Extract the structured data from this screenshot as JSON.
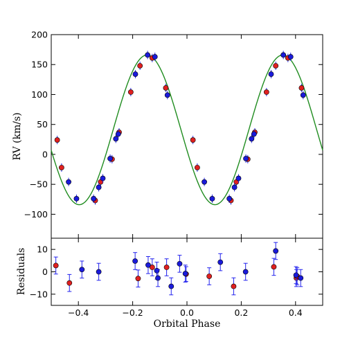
{
  "chart_data": [
    {
      "type": "scatter",
      "panel": "top",
      "xlabel": "",
      "ylabel": "RV (km/s)",
      "xlim": [
        -0.5,
        0.5
      ],
      "ylim": [
        -140,
        200
      ],
      "x_ticks": [
        -0.4,
        -0.2,
        0.0,
        0.2,
        0.4
      ],
      "x_tick_labels": [
        "",
        "",
        "",
        "",
        ""
      ],
      "y_ticks": [
        -100,
        -50,
        0,
        50,
        100,
        150,
        200
      ],
      "y_tick_labels": [
        "−100",
        "−50",
        "0",
        "50",
        "100",
        "150",
        "200"
      ],
      "grid": false,
      "colors": {
        "model": "#1f8c1f",
        "series_red": "#e02020",
        "series_blue": "#1a1adb",
        "errorbar": "#2222ee"
      },
      "model_curve": {
        "gamma": 41,
        "amplitude": 125,
        "period_in_phase": 0.5,
        "peak_phase": 0.353
      },
      "series": [
        {
          "color": "red",
          "points": [
            {
              "x": -0.478,
              "y": 24
            },
            {
              "x": -0.462,
              "y": -22
            },
            {
              "x": -0.338,
              "y": -77
            },
            {
              "x": -0.318,
              "y": -46
            },
            {
              "x": -0.276,
              "y": -8
            },
            {
              "x": -0.25,
              "y": 37
            },
            {
              "x": -0.207,
              "y": 104
            },
            {
              "x": -0.173,
              "y": 148
            },
            {
              "x": -0.128,
              "y": 161
            },
            {
              "x": -0.078,
              "y": 111
            },
            {
              "x": 0.022,
              "y": 24
            },
            {
              "x": 0.038,
              "y": -22
            },
            {
              "x": 0.162,
              "y": -77
            },
            {
              "x": 0.182,
              "y": -46
            },
            {
              "x": 0.224,
              "y": -8
            },
            {
              "x": 0.25,
              "y": 37
            },
            {
              "x": 0.293,
              "y": 104
            },
            {
              "x": 0.327,
              "y": 148
            },
            {
              "x": 0.372,
              "y": 161
            },
            {
              "x": 0.422,
              "y": 111
            }
          ]
        },
        {
          "color": "blue",
          "points": [
            {
              "x": -0.436,
              "y": -46
            },
            {
              "x": -0.407,
              "y": -74
            },
            {
              "x": -0.344,
              "y": -74
            },
            {
              "x": -0.325,
              "y": -55
            },
            {
              "x": -0.31,
              "y": -40
            },
            {
              "x": -0.283,
              "y": -7
            },
            {
              "x": -0.262,
              "y": 26
            },
            {
              "x": -0.253,
              "y": 34
            },
            {
              "x": -0.19,
              "y": 134
            },
            {
              "x": -0.145,
              "y": 166
            },
            {
              "x": -0.118,
              "y": 163
            },
            {
              "x": -0.072,
              "y": 99
            },
            {
              "x": 0.064,
              "y": -46
            },
            {
              "x": 0.093,
              "y": -74
            },
            {
              "x": 0.156,
              "y": -74
            },
            {
              "x": 0.175,
              "y": -55
            },
            {
              "x": 0.19,
              "y": -40
            },
            {
              "x": 0.217,
              "y": -7
            },
            {
              "x": 0.238,
              "y": 26
            },
            {
              "x": 0.247,
              "y": 34
            },
            {
              "x": 0.31,
              "y": 134
            },
            {
              "x": 0.355,
              "y": 166
            },
            {
              "x": 0.382,
              "y": 163
            },
            {
              "x": 0.428,
              "y": 99
            }
          ]
        }
      ]
    },
    {
      "type": "scatter",
      "panel": "bottom",
      "xlabel": "Orbital Phase",
      "ylabel": "Residuals",
      "xlim": [
        -0.5,
        0.5
      ],
      "ylim": [
        -15,
        15
      ],
      "x_ticks": [
        -0.4,
        -0.2,
        0.0,
        0.2,
        0.4
      ],
      "x_tick_labels": [
        "−0.4",
        "−0.2",
        "0.0",
        "0.2",
        "0.4"
      ],
      "y_ticks": [
        -10,
        0,
        10
      ],
      "y_tick_labels": [
        "−10",
        "0",
        "10"
      ],
      "grid": false,
      "series": [
        {
          "color": "red",
          "points": [
            {
              "x": -0.483,
              "y": 2.8,
              "err": 3.8
            },
            {
              "x": -0.433,
              "y": -5.0,
              "err": 3.8
            },
            {
              "x": -0.18,
              "y": -3.0,
              "err": 3.8
            },
            {
              "x": -0.128,
              "y": 2.0,
              "err": 3.8
            },
            {
              "x": -0.075,
              "y": 2.0,
              "err": 3.8
            },
            {
              "x": -0.003,
              "y": -1.0,
              "err": 3.3
            },
            {
              "x": 0.082,
              "y": -2.0,
              "err": 3.8
            },
            {
              "x": 0.172,
              "y": -6.5,
              "err": 3.8
            },
            {
              "x": 0.32,
              "y": 2.2,
              "err": 3.8
            },
            {
              "x": 0.403,
              "y": -2.8,
              "err": 3.8
            },
            {
              "x": 0.406,
              "y": -2.0,
              "err": 3.8
            }
          ]
        },
        {
          "color": "blue",
          "points": [
            {
              "x": -0.387,
              "y": 1.0,
              "err": 3.8
            },
            {
              "x": -0.325,
              "y": 0.0,
              "err": 3.8
            },
            {
              "x": -0.191,
              "y": 4.8,
              "err": 3.8
            },
            {
              "x": -0.143,
              "y": 3.0,
              "err": 3.8
            },
            {
              "x": -0.111,
              "y": 0.5,
              "err": 3.8
            },
            {
              "x": -0.107,
              "y": -2.8,
              "err": 3.8
            },
            {
              "x": -0.058,
              "y": -6.5,
              "err": 3.8
            },
            {
              "x": -0.027,
              "y": 3.6,
              "err": 3.8
            },
            {
              "x": -0.006,
              "y": -0.8,
              "err": 3.8
            },
            {
              "x": 0.123,
              "y": 4.3,
              "err": 3.8
            },
            {
              "x": 0.216,
              "y": 0.0,
              "err": 3.8
            },
            {
              "x": 0.327,
              "y": 9.3,
              "err": 3.8
            },
            {
              "x": 0.402,
              "y": -1.5,
              "err": 3.8
            },
            {
              "x": 0.419,
              "y": -2.8,
              "err": 3.8
            }
          ]
        }
      ]
    }
  ]
}
